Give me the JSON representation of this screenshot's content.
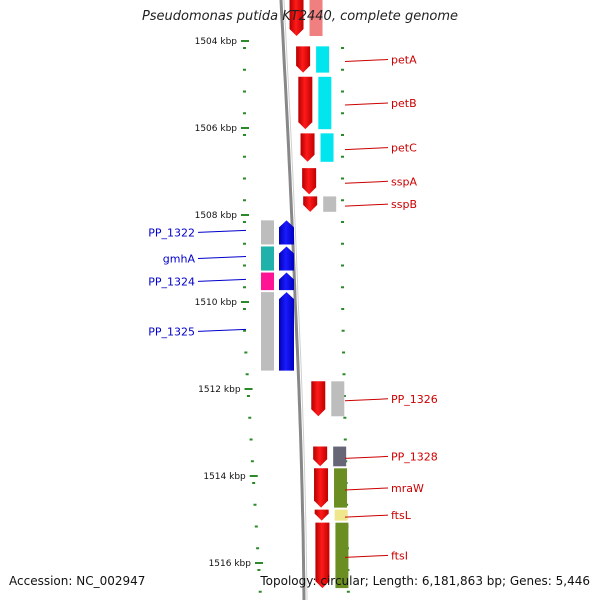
{
  "title": "Pseudomonas putida KT2440, complete genome",
  "footer": {
    "accession": "Accession: NC_002947",
    "stats": "Topology: circular; Length: 6,181,863 bp; Genes: 5,446"
  },
  "scale": {
    "ticks": [
      {
        "label": "1504 kbp",
        "kbp": 1504
      },
      {
        "label": "1506 kbp",
        "kbp": 1506
      },
      {
        "label": "1508 kbp",
        "kbp": 1508
      },
      {
        "label": "1510 kbp",
        "kbp": 1510
      },
      {
        "label": "1512 kbp",
        "kbp": 1512
      },
      {
        "label": "1514 kbp",
        "kbp": 1514
      },
      {
        "label": "1516 kbp",
        "kbp": 1516
      }
    ]
  },
  "colors": {
    "forward_gene": "#ff0000",
    "reverse_gene": "#0000ff",
    "forward_label": "#cc0000",
    "reverse_label": "#0000cc",
    "tick": "#2a8a2a",
    "backbone": "#888888"
  },
  "genes_forward": [
    {
      "name": "petA",
      "start": 1504.1,
      "end": 1504.75,
      "class_color": "#00e5ee"
    },
    {
      "name": "petB",
      "start": 1504.8,
      "end": 1506.05,
      "class_color": "#00e5ee"
    },
    {
      "name": "petC",
      "start": 1506.1,
      "end": 1506.8,
      "class_color": "#00e5ee"
    },
    {
      "name": "sspA",
      "start": 1506.9,
      "end": 1507.55,
      "class_color": null
    },
    {
      "name": "sspB",
      "start": 1507.55,
      "end": 1507.95,
      "class_color": "#bdbdbd"
    },
    {
      "name": "PP_1326",
      "start": 1511.8,
      "end": 1512.65,
      "class_color": "#bdbdbd"
    },
    {
      "name": "PP_1328",
      "start": 1513.3,
      "end": 1513.8,
      "class_color": "#666677"
    },
    {
      "name": "mraW",
      "start": 1513.8,
      "end": 1514.75,
      "class_color": "#6b8e23"
    },
    {
      "name": "ftsL",
      "start": 1514.75,
      "end": 1515.05,
      "class_color": "#f0e68c"
    },
    {
      "name": "ftsI",
      "start": 1515.05,
      "end": 1516.6,
      "class_color": "#6b8e23"
    }
  ],
  "genes_reverse": [
    {
      "name": "PP_1322",
      "start": 1508.1,
      "end": 1508.7,
      "class_color": "#bdbdbd"
    },
    {
      "name": "gmhA",
      "start": 1508.7,
      "end": 1509.3,
      "class_color": "#20b2aa"
    },
    {
      "name": "PP_1324",
      "start": 1509.3,
      "end": 1509.75,
      "class_color": "#ff1493"
    },
    {
      "name": "PP_1325",
      "start": 1509.75,
      "end": 1511.6,
      "class_color": "#bdbdbd"
    }
  ]
}
